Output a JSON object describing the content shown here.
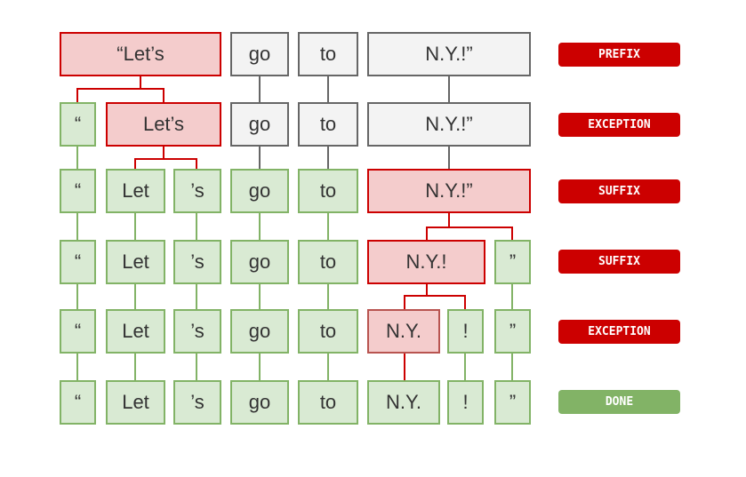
{
  "rows": [
    {
      "tokens": [
        "“Let’s",
        "go",
        "to",
        "N.Y.!”"
      ],
      "step": "PREFIX"
    },
    {
      "tokens": [
        "“",
        "Let’s",
        "go",
        "to",
        "N.Y.!”"
      ],
      "step": "EXCEPTION"
    },
    {
      "tokens": [
        "“",
        "Let",
        "’s",
        "go",
        "to",
        "N.Y.!”"
      ],
      "step": "SUFFIX"
    },
    {
      "tokens": [
        "“",
        "Let",
        "’s",
        "go",
        "to",
        "N.Y.!",
        "”"
      ],
      "step": "SUFFIX"
    },
    {
      "tokens": [
        "“",
        "Let",
        "’s",
        "go",
        "to",
        "N.Y.",
        "!",
        "”"
      ],
      "step": "EXCEPTION"
    },
    {
      "tokens": [
        "“",
        "Let",
        "’s",
        "go",
        "to",
        "N.Y.",
        "!",
        "”"
      ],
      "step": "DONE"
    }
  ],
  "colors": {
    "done_fill": "#d9ead3",
    "done_border": "#82b366",
    "pending_fill": "#f3f3f3",
    "pending_border": "#666666",
    "active_fill": "#f4cccc",
    "active_border": "#cc0000",
    "badge_red": "#cc0000",
    "badge_green": "#82b366"
  }
}
